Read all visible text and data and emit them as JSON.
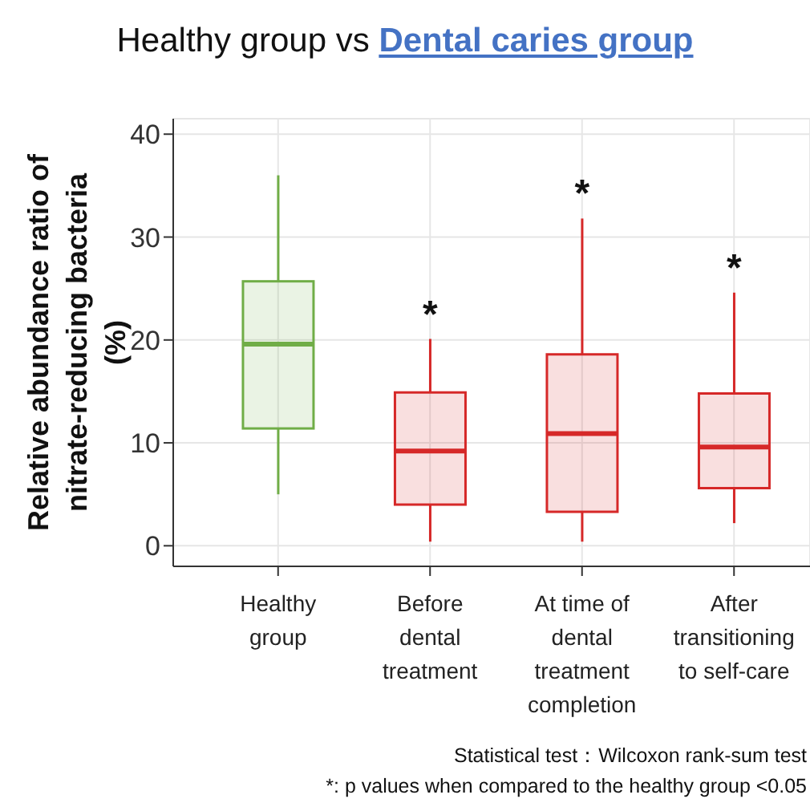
{
  "chart_data": {
    "type": "box",
    "title": "Healthy group vs",
    "subtitle": "Dental caries group",
    "ylabel": "Relative abundance ratio of nitrate-reducing bacteria (%)",
    "categories": [
      "Healthy group",
      "Before dental treatment",
      "At time of dental treatment completion",
      "After transitioning to self-care"
    ],
    "colors": [
      "#70ad47",
      "#d62828",
      "#d62828",
      "#d62828"
    ],
    "boxes": [
      {
        "low": 5,
        "q1": 11.4,
        "median": 19.6,
        "q3": 25.7,
        "high": 36
      },
      {
        "low": 0.4,
        "q1": 4,
        "median": 9.2,
        "q3": 14.9,
        "high": 20.1
      },
      {
        "low": 0.4,
        "q1": 3.3,
        "median": 10.9,
        "q3": 18.6,
        "high": 31.8
      },
      {
        "low": 2.2,
        "q1": 5.6,
        "median": 9.6,
        "q3": 14.8,
        "high": 24.6
      }
    ],
    "ylim": [
      -2,
      41.5
    ],
    "yticks": [
      0,
      10,
      20,
      30,
      40
    ],
    "grid": true,
    "annotations": [
      {
        "text": "*",
        "x": "Before dental treatment",
        "y": 20.1
      },
      {
        "text": "*",
        "x": "At time of dental treatment completion",
        "y": 31.8
      },
      {
        "text": "*",
        "x": "After transitioning to self-care",
        "y": 24.6
      },
      "Statistical test：Wilcoxon rank-sum test",
      "*: p values when compared to the healthy group <0.05"
    ]
  }
}
